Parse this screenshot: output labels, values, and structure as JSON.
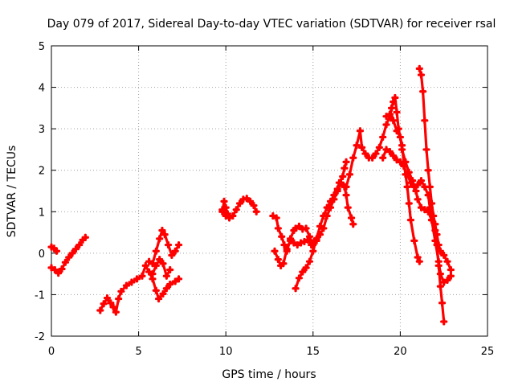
{
  "chart_data": {
    "type": "scatter",
    "title": "Day 079 of 2017, Sidereal Day-to-day VTEC variation (SDTVAR) for receiver rsal",
    "xlabel": "GPS time / hours",
    "ylabel": "SDTVAR / TECUs",
    "xlim": [
      0,
      25
    ],
    "ylim": [
      -2,
      5
    ],
    "xticks": [
      "0",
      "5",
      "10",
      "15",
      "20",
      "25"
    ],
    "yticks": [
      "-2",
      "-1",
      "0",
      "1",
      "2",
      "3",
      "4",
      "5"
    ],
    "grid": true,
    "marker": "plus",
    "color": "#ff0000",
    "segments": [
      [
        [
          0.0,
          -0.35
        ],
        [
          0.2,
          -0.4
        ],
        [
          0.4,
          -0.48
        ],
        [
          0.6,
          -0.38
        ],
        [
          0.8,
          -0.22
        ],
        [
          1.0,
          -0.1
        ],
        [
          1.2,
          0.0
        ],
        [
          1.4,
          0.1
        ],
        [
          1.6,
          0.2
        ],
        [
          1.8,
          0.32
        ],
        [
          1.95,
          0.38
        ]
      ],
      [
        [
          0.0,
          0.15
        ],
        [
          0.15,
          0.12
        ],
        [
          0.3,
          0.05
        ]
      ],
      [
        [
          2.8,
          -1.38
        ],
        [
          3.0,
          -1.22
        ],
        [
          3.2,
          -1.08
        ],
        [
          3.4,
          -1.2
        ],
        [
          3.55,
          -1.3
        ],
        [
          3.7,
          -1.42
        ],
        [
          3.85,
          -1.1
        ],
        [
          4.0,
          -0.92
        ],
        [
          4.3,
          -0.78
        ],
        [
          4.6,
          -0.7
        ],
        [
          4.9,
          -0.62
        ],
        [
          5.2,
          -0.55
        ],
        [
          5.4,
          -0.3
        ],
        [
          5.6,
          -0.45
        ],
        [
          5.8,
          -0.62
        ],
        [
          6.0,
          -0.9
        ],
        [
          6.15,
          -1.1
        ],
        [
          6.4,
          -0.98
        ],
        [
          6.6,
          -0.85
        ],
        [
          6.8,
          -0.75
        ],
        [
          7.1,
          -0.68
        ],
        [
          7.3,
          -0.62
        ]
      ],
      [
        [
          5.6,
          -0.2
        ],
        [
          5.8,
          -0.25
        ],
        [
          6.0,
          0.05
        ],
        [
          6.2,
          0.35
        ],
        [
          6.35,
          0.55
        ],
        [
          6.5,
          0.45
        ],
        [
          6.7,
          0.2
        ],
        [
          6.9,
          -0.05
        ],
        [
          7.1,
          0.05
        ],
        [
          7.3,
          0.2
        ]
      ],
      [
        [
          5.8,
          -0.5
        ],
        [
          6.0,
          -0.3
        ],
        [
          6.2,
          -0.15
        ],
        [
          6.4,
          -0.25
        ],
        [
          6.6,
          -0.55
        ],
        [
          6.8,
          -0.4
        ]
      ],
      [
        [
          9.8,
          1.0
        ],
        [
          9.9,
          1.25
        ],
        [
          10.0,
          1.1
        ],
        [
          10.1,
          0.95
        ],
        [
          10.2,
          0.85
        ],
        [
          10.4,
          0.9
        ],
        [
          10.6,
          1.05
        ],
        [
          10.8,
          1.2
        ],
        [
          11.0,
          1.3
        ],
        [
          11.2,
          1.32
        ],
        [
          11.4,
          1.25
        ],
        [
          11.6,
          1.15
        ],
        [
          11.75,
          1.0
        ]
      ],
      [
        [
          9.8,
          1.05
        ],
        [
          10.0,
          0.9
        ]
      ],
      [
        [
          12.7,
          0.9
        ],
        [
          12.9,
          0.85
        ],
        [
          13.0,
          0.6
        ],
        [
          13.2,
          0.4
        ],
        [
          13.35,
          0.2
        ],
        [
          13.5,
          0.05
        ],
        [
          13.7,
          0.35
        ],
        [
          13.9,
          0.55
        ],
        [
          14.0,
          0.6
        ],
        [
          14.2,
          0.65
        ],
        [
          14.4,
          0.58
        ],
        [
          14.6,
          0.6
        ],
        [
          14.8,
          0.4
        ],
        [
          15.0,
          0.2
        ],
        [
          15.2,
          0.3
        ],
        [
          15.4,
          0.45
        ],
        [
          15.6,
          0.6
        ],
        [
          15.8,
          0.9
        ],
        [
          16.0,
          1.1
        ],
        [
          16.2,
          1.3
        ],
        [
          16.4,
          1.5
        ],
        [
          16.6,
          1.7
        ],
        [
          16.8,
          1.6
        ],
        [
          16.9,
          1.4
        ],
        [
          17.0,
          1.1
        ],
        [
          17.2,
          0.85
        ],
        [
          17.3,
          0.7
        ]
      ],
      [
        [
          12.8,
          0.05
        ],
        [
          13.0,
          -0.15
        ],
        [
          13.15,
          -0.3
        ],
        [
          13.3,
          -0.25
        ],
        [
          13.5,
          0.1
        ],
        [
          13.7,
          0.3
        ],
        [
          13.9,
          0.25
        ],
        [
          14.1,
          0.2
        ],
        [
          14.3,
          0.25
        ],
        [
          14.5,
          0.28
        ],
        [
          14.7,
          0.32
        ],
        [
          14.9,
          0.2
        ],
        [
          15.1,
          0.3
        ]
      ],
      [
        [
          14.0,
          -0.85
        ],
        [
          14.2,
          -0.6
        ],
        [
          14.4,
          -0.45
        ],
        [
          14.6,
          -0.35
        ],
        [
          14.8,
          -0.2
        ],
        [
          15.0,
          0.05
        ],
        [
          15.2,
          0.35
        ],
        [
          15.4,
          0.65
        ],
        [
          15.6,
          0.9
        ],
        [
          15.8,
          1.1
        ],
        [
          16.0,
          1.25
        ],
        [
          16.2,
          1.4
        ],
        [
          16.4,
          1.55
        ],
        [
          16.5,
          1.7
        ],
        [
          16.7,
          1.85
        ],
        [
          16.8,
          2.05
        ],
        [
          16.9,
          2.2
        ]
      ],
      [
        [
          16.9,
          1.6
        ],
        [
          17.1,
          1.9
        ],
        [
          17.3,
          2.3
        ],
        [
          17.5,
          2.6
        ],
        [
          17.7,
          2.95
        ],
        [
          17.8,
          2.55
        ],
        [
          18.0,
          2.4
        ],
        [
          18.2,
          2.3
        ],
        [
          18.4,
          2.3
        ],
        [
          18.6,
          2.4
        ],
        [
          18.8,
          2.55
        ],
        [
          19.0,
          2.8
        ],
        [
          19.2,
          3.1
        ],
        [
          19.4,
          3.3
        ],
        [
          19.5,
          3.5
        ],
        [
          19.6,
          3.65
        ],
        [
          19.7,
          3.75
        ],
        [
          19.8,
          3.4
        ],
        [
          19.9,
          3.0
        ],
        [
          20.1,
          2.6
        ],
        [
          20.2,
          2.2
        ],
        [
          20.3,
          1.9
        ],
        [
          20.4,
          1.6
        ],
        [
          20.5,
          1.2
        ],
        [
          20.6,
          0.8
        ],
        [
          20.8,
          0.3
        ],
        [
          21.0,
          -0.1
        ],
        [
          21.1,
          -0.2
        ]
      ],
      [
        [
          19.0,
          2.3
        ],
        [
          19.2,
          2.5
        ],
        [
          19.4,
          2.45
        ],
        [
          19.6,
          2.35
        ],
        [
          19.8,
          2.25
        ],
        [
          20.0,
          2.2
        ],
        [
          20.2,
          2.1
        ],
        [
          20.4,
          1.9
        ],
        [
          20.6,
          1.7
        ],
        [
          20.8,
          1.6
        ],
        [
          21.0,
          1.65
        ],
        [
          21.2,
          1.75
        ],
        [
          21.4,
          1.6
        ],
        [
          21.6,
          1.4
        ],
        [
          21.7,
          1.1
        ],
        [
          21.8,
          0.8
        ],
        [
          22.0,
          0.3
        ],
        [
          22.2,
          -0.2
        ],
        [
          22.3,
          -0.5
        ],
        [
          22.5,
          -0.7
        ],
        [
          22.7,
          -0.65
        ],
        [
          22.9,
          -0.55
        ]
      ],
      [
        [
          19.2,
          3.3
        ],
        [
          19.4,
          3.35
        ],
        [
          19.6,
          3.2
        ],
        [
          19.8,
          2.95
        ],
        [
          20.0,
          2.8
        ],
        [
          20.1,
          2.5
        ],
        [
          20.3,
          2.2
        ],
        [
          20.5,
          1.95
        ],
        [
          20.7,
          1.75
        ],
        [
          20.9,
          1.5
        ],
        [
          21.0,
          1.3
        ],
        [
          21.2,
          1.1
        ],
        [
          21.4,
          1.05
        ],
        [
          21.6,
          1.0
        ],
        [
          21.8,
          0.8
        ],
        [
          22.0,
          0.55
        ],
        [
          22.1,
          0.2
        ],
        [
          22.2,
          -0.3
        ],
        [
          22.3,
          -0.8
        ],
        [
          22.4,
          -1.2
        ],
        [
          22.5,
          -1.65
        ]
      ],
      [
        [
          21.1,
          4.45
        ],
        [
          21.2,
          4.3
        ],
        [
          21.3,
          3.9
        ],
        [
          21.4,
          3.2
        ],
        [
          21.5,
          2.5
        ],
        [
          21.6,
          2.0
        ],
        [
          21.7,
          1.6
        ],
        [
          21.8,
          1.2
        ],
        [
          21.9,
          0.9
        ],
        [
          22.0,
          0.7
        ],
        [
          22.1,
          0.45
        ],
        [
          22.2,
          0.2
        ],
        [
          22.3,
          0.05
        ],
        [
          22.5,
          -0.05
        ],
        [
          22.7,
          -0.2
        ],
        [
          22.9,
          -0.4
        ]
      ]
    ]
  }
}
